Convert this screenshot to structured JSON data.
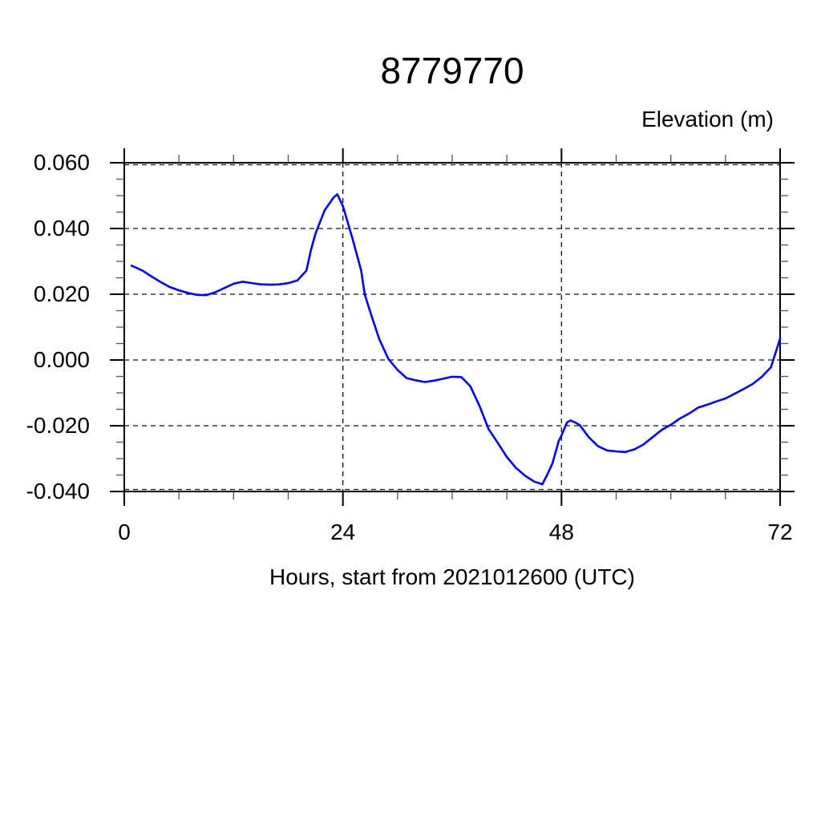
{
  "colors": {
    "background": "#ffffff",
    "line": "#0000ee",
    "frame": "#000000",
    "grid": "#111111",
    "major_tick": "#000000",
    "minor_tick": "#555555",
    "text": "#000000"
  },
  "chart_data": {
    "type": "line",
    "title": "8779770",
    "ylabel": "Elevation (m)",
    "xlabel": "Hours, start from 2021012600 (UTC)",
    "xlim": [
      0,
      72
    ],
    "ylim": [
      -0.04,
      0.06
    ],
    "x_major_ticks": [
      0,
      24,
      48,
      72
    ],
    "x_tick_labels": [
      "0",
      "24",
      "48",
      "72"
    ],
    "x_minor_step": 6,
    "x_grid_lines": [
      24,
      48
    ],
    "y_major_ticks": [
      0.06,
      0.04,
      0.02,
      0.0,
      -0.02,
      -0.04
    ],
    "y_tick_labels": [
      "0.060",
      "0.040",
      "0.020",
      "0.000",
      "-0.020",
      "-0.040"
    ],
    "y_minor_step": 0.005,
    "grid": "dashed horizontal lines at every y major tick; dashed vertical lines at x=24 and x=48",
    "legend": "none",
    "series": [
      {
        "name": "elevation",
        "color": "#0000ee",
        "points": [
          [
            0.8,
            0.0287
          ],
          [
            2,
            0.0272
          ],
          [
            3,
            0.0254
          ],
          [
            4,
            0.0237
          ],
          [
            5,
            0.0222
          ],
          [
            6,
            0.0212
          ],
          [
            7,
            0.0204
          ],
          [
            8,
            0.0198
          ],
          [
            9,
            0.0197
          ],
          [
            10,
            0.0206
          ],
          [
            11,
            0.0219
          ],
          [
            12,
            0.0232
          ],
          [
            13,
            0.0238
          ],
          [
            14,
            0.0234
          ],
          [
            15,
            0.023
          ],
          [
            16,
            0.0229
          ],
          [
            17,
            0.023
          ],
          [
            18,
            0.0234
          ],
          [
            19,
            0.0242
          ],
          [
            20,
            0.0272
          ],
          [
            20.5,
            0.0335
          ],
          [
            21,
            0.0385
          ],
          [
            22,
            0.0455
          ],
          [
            23,
            0.0495
          ],
          [
            23.4,
            0.0504
          ],
          [
            24,
            0.0468
          ],
          [
            25,
            0.0375
          ],
          [
            26,
            0.0273
          ],
          [
            26.4,
            0.02
          ],
          [
            27,
            0.0146
          ],
          [
            28,
            0.0063
          ],
          [
            29,
            0.0003
          ],
          [
            30,
            -0.003
          ],
          [
            31,
            -0.0055
          ],
          [
            32,
            -0.0062
          ],
          [
            33,
            -0.0067
          ],
          [
            34,
            -0.0063
          ],
          [
            35,
            -0.0057
          ],
          [
            36,
            -0.0051
          ],
          [
            37,
            -0.0052
          ],
          [
            38,
            -0.008
          ],
          [
            39,
            -0.014
          ],
          [
            40,
            -0.021
          ],
          [
            41,
            -0.0252
          ],
          [
            42,
            -0.0295
          ],
          [
            43,
            -0.0328
          ],
          [
            44,
            -0.0352
          ],
          [
            45,
            -0.037
          ],
          [
            45.9,
            -0.0378
          ],
          [
            46.5,
            -0.0345
          ],
          [
            47,
            -0.0315
          ],
          [
            47.7,
            -0.0246
          ],
          [
            48,
            -0.023
          ],
          [
            48.6,
            -0.019
          ],
          [
            49,
            -0.0184
          ],
          [
            49.5,
            -0.019
          ],
          [
            50,
            -0.0198
          ],
          [
            51,
            -0.0235
          ],
          [
            52,
            -0.0262
          ],
          [
            53,
            -0.0275
          ],
          [
            54,
            -0.0278
          ],
          [
            55,
            -0.028
          ],
          [
            56,
            -0.0272
          ],
          [
            57,
            -0.0257
          ],
          [
            58,
            -0.0235
          ],
          [
            59,
            -0.0213
          ],
          [
            60,
            -0.0197
          ],
          [
            61,
            -0.0178
          ],
          [
            62,
            -0.0163
          ],
          [
            63,
            -0.0145
          ],
          [
            64,
            -0.0136
          ],
          [
            65,
            -0.0126
          ],
          [
            66,
            -0.0117
          ],
          [
            67,
            -0.0103
          ],
          [
            68,
            -0.0088
          ],
          [
            69,
            -0.0073
          ],
          [
            70,
            -0.0051
          ],
          [
            71,
            -0.0022
          ],
          [
            72,
            0.0065
          ]
        ]
      }
    ]
  }
}
